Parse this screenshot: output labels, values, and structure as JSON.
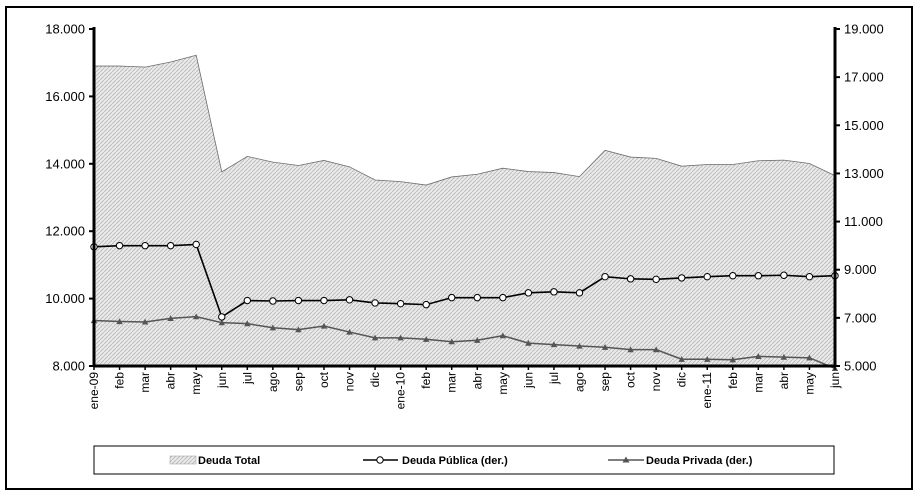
{
  "chart_data": {
    "type": "area",
    "categories": [
      "ene-09",
      "feb",
      "mar",
      "abr",
      "may",
      "jun",
      "jul",
      "ago",
      "sep",
      "oct",
      "nov",
      "dic",
      "ene-10",
      "feb",
      "mar",
      "abr",
      "may",
      "jun",
      "jul",
      "ago",
      "sep",
      "oct",
      "nov",
      "dic",
      "ene-11",
      "feb",
      "mar",
      "abr",
      "may",
      "jun"
    ],
    "y_left": {
      "ylim": [
        8000,
        18000
      ],
      "ticks": [
        "8.000",
        "10.000",
        "12.000",
        "14.000",
        "16.000",
        "18.000"
      ]
    },
    "y_right": {
      "ylim": [
        5000,
        19000
      ],
      "ticks": [
        "5.000",
        "7.000",
        "9.000",
        "11.000",
        "13.000",
        "15.000",
        "17.000",
        "19.000"
      ]
    },
    "series": [
      {
        "name": "Deuda Total",
        "axis": "left",
        "kind": "area",
        "values": [
          16900,
          16900,
          16870,
          17020,
          17220,
          13760,
          14220,
          14050,
          13950,
          14100,
          13910,
          13520,
          13470,
          13370,
          13610,
          13690,
          13870,
          13770,
          13740,
          13620,
          14400,
          14200,
          14160,
          13930,
          13980,
          13980,
          14090,
          14110,
          14010,
          13650
        ]
      },
      {
        "name": "Deuda Pública (der.)",
        "axis": "right",
        "kind": "line",
        "marker": "circle",
        "values": [
          9950,
          10000,
          10000,
          10000,
          10050,
          7040,
          7720,
          7700,
          7720,
          7720,
          7750,
          7620,
          7590,
          7550,
          7840,
          7840,
          7840,
          8040,
          8080,
          8040,
          8710,
          8620,
          8600,
          8660,
          8710,
          8750,
          8750,
          8770,
          8710,
          8750
        ]
      },
      {
        "name": "Deuda Privada (der.)",
        "axis": "right",
        "kind": "line",
        "marker": "triangle",
        "values": [
          6890,
          6850,
          6830,
          6980,
          7050,
          6800,
          6760,
          6590,
          6510,
          6660,
          6410,
          6170,
          6170,
          6110,
          6010,
          6070,
          6260,
          5950,
          5890,
          5830,
          5780,
          5680,
          5680,
          5280,
          5280,
          5260,
          5400,
          5370,
          5340,
          4900
        ]
      }
    ],
    "colors": {
      "area_fill": "#e6e6e6",
      "area_hatch": "#b4b4b4",
      "line": "#000000"
    },
    "grid": false,
    "legend_position": "bottom"
  }
}
